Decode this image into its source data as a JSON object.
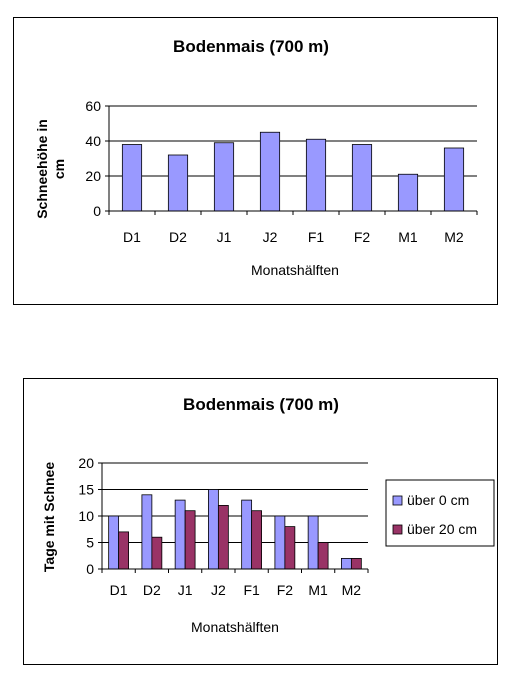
{
  "chart_data": [
    {
      "type": "bar",
      "title": "Bodenmais (700 m)",
      "xlabel": "Monatshälften",
      "ylabel": "Schneehöhe in cm",
      "ylabel_lines": [
        "Schneehöhe in",
        "cm"
      ],
      "categories": [
        "D1",
        "D2",
        "J1",
        "J2",
        "F1",
        "F2",
        "M1",
        "M2"
      ],
      "series": [
        {
          "values": [
            38,
            32,
            39,
            45,
            41,
            38,
            21,
            36
          ],
          "color": "#9999ff"
        }
      ],
      "ylim": [
        0,
        60
      ],
      "yticks": [
        0,
        20,
        40,
        60
      ],
      "grid": true,
      "legend": "none"
    },
    {
      "type": "bar",
      "title": "Bodenmais (700 m)",
      "xlabel": "Monatshälften",
      "ylabel": "Tage mit Schnee",
      "categories": [
        "D1",
        "D2",
        "J1",
        "J2",
        "F1",
        "F2",
        "M1",
        "M2"
      ],
      "series": [
        {
          "name": "über 0 cm",
          "values": [
            10,
            14,
            13,
            15,
            13,
            10,
            10,
            2
          ],
          "color": "#9999ff"
        },
        {
          "name": "über 20 cm",
          "values": [
            7,
            6,
            11,
            12,
            11,
            8,
            5,
            2
          ],
          "color": "#993366"
        }
      ],
      "ylim": [
        0,
        20
      ],
      "yticks": [
        0,
        5,
        10,
        15,
        20
      ],
      "grid": true,
      "legend": "right"
    }
  ]
}
